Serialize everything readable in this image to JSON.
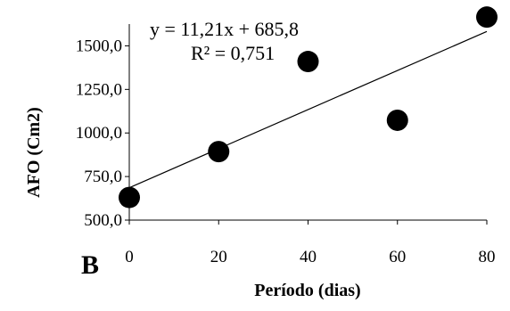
{
  "chart_data": {
    "type": "scatter",
    "title": "",
    "xlabel": "Período (dias)",
    "ylabel": "AFO (Cm2)",
    "xlim": [
      0,
      80
    ],
    "ylim": [
      500,
      1625
    ],
    "x_ticks": [
      0,
      20,
      40,
      60,
      80
    ],
    "x_tick_labels": [
      "0",
      "20",
      "40",
      "60",
      "80"
    ],
    "y_ticks": [
      500,
      750,
      1000,
      1250,
      1500
    ],
    "y_tick_labels": [
      "500,0",
      "750,0",
      "1000,0",
      "1250,0",
      "1500,0"
    ],
    "series": [
      {
        "x": [
          0,
          20,
          40,
          60,
          80
        ],
        "y": [
          630,
          893,
          1410,
          1073,
          1665
        ]
      }
    ],
    "trendline": {
      "slope": 11.21,
      "intercept": 685.8
    },
    "equation": "y = 11,21x + 685,8",
    "r_squared": "R² = 0,751",
    "panel_label": "B",
    "grid": false,
    "marker_color": "#000000"
  }
}
